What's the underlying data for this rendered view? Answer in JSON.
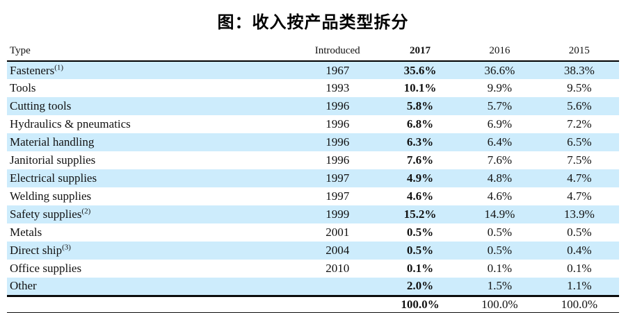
{
  "title": "图：收入按产品类型拆分",
  "table": {
    "headers": [
      "Type",
      "Introduced",
      "2017",
      "2016",
      "2015"
    ],
    "rows": [
      {
        "type": "Fasteners",
        "sup": "(1)",
        "introduced": "1967",
        "y2017": "35.6%",
        "y2016": "36.6%",
        "y2015": "38.3%"
      },
      {
        "type": "Tools",
        "sup": "",
        "introduced": "1993",
        "y2017": "10.1%",
        "y2016": "9.9%",
        "y2015": "9.5%"
      },
      {
        "type": "Cutting tools",
        "sup": "",
        "introduced": "1996",
        "y2017": "5.8%",
        "y2016": "5.7%",
        "y2015": "5.6%"
      },
      {
        "type": "Hydraulics & pneumatics",
        "sup": "",
        "introduced": "1996",
        "y2017": "6.8%",
        "y2016": "6.9%",
        "y2015": "7.2%"
      },
      {
        "type": "Material handling",
        "sup": "",
        "introduced": "1996",
        "y2017": "6.3%",
        "y2016": "6.4%",
        "y2015": "6.5%"
      },
      {
        "type": "Janitorial supplies",
        "sup": "",
        "introduced": "1996",
        "y2017": "7.6%",
        "y2016": "7.6%",
        "y2015": "7.5%"
      },
      {
        "type": "Electrical supplies",
        "sup": "",
        "introduced": "1997",
        "y2017": "4.9%",
        "y2016": "4.8%",
        "y2015": "4.7%"
      },
      {
        "type": "Welding supplies",
        "sup": "",
        "introduced": "1997",
        "y2017": "4.6%",
        "y2016": "4.6%",
        "y2015": "4.7%"
      },
      {
        "type": "Safety supplies",
        "sup": "(2)",
        "introduced": "1999",
        "y2017": "15.2%",
        "y2016": "14.9%",
        "y2015": "13.9%"
      },
      {
        "type": "Metals",
        "sup": "",
        "introduced": "2001",
        "y2017": "0.5%",
        "y2016": "0.5%",
        "y2015": "0.5%"
      },
      {
        "type": "Direct ship",
        "sup": "(3)",
        "introduced": "2004",
        "y2017": "0.5%",
        "y2016": "0.5%",
        "y2015": "0.4%"
      },
      {
        "type": "Office supplies",
        "sup": "",
        "introduced": "2010",
        "y2017": "0.1%",
        "y2016": "0.1%",
        "y2015": "0.1%"
      },
      {
        "type": "Other",
        "sup": "",
        "introduced": "",
        "y2017": "2.0%",
        "y2016": "1.5%",
        "y2015": "1.1%"
      }
    ],
    "total": {
      "type": "",
      "introduced": "",
      "y2017": "100.0%",
      "y2016": "100.0%",
      "y2015": "100.0%"
    }
  },
  "colors": {
    "row_highlight": "#cdecfc",
    "text": "#111111",
    "rule": "#000000"
  },
  "chart_data": {
    "type": "table",
    "title": "图：收入按产品类型拆分",
    "columns": [
      "Type",
      "Introduced",
      "2017",
      "2016",
      "2015"
    ],
    "rows": [
      [
        "Fasteners(1)",
        "1967",
        "35.6%",
        "36.6%",
        "38.3%"
      ],
      [
        "Tools",
        "1993",
        "10.1%",
        "9.9%",
        "9.5%"
      ],
      [
        "Cutting tools",
        "1996",
        "5.8%",
        "5.7%",
        "5.6%"
      ],
      [
        "Hydraulics & pneumatics",
        "1996",
        "6.8%",
        "6.9%",
        "7.2%"
      ],
      [
        "Material handling",
        "1996",
        "6.3%",
        "6.4%",
        "6.5%"
      ],
      [
        "Janitorial supplies",
        "1996",
        "7.6%",
        "7.6%",
        "7.5%"
      ],
      [
        "Electrical supplies",
        "1997",
        "4.9%",
        "4.8%",
        "4.7%"
      ],
      [
        "Welding supplies",
        "1997",
        "4.6%",
        "4.6%",
        "4.7%"
      ],
      [
        "Safety supplies(2)",
        "1999",
        "15.2%",
        "14.9%",
        "13.9%"
      ],
      [
        "Metals",
        "2001",
        "0.5%",
        "0.5%",
        "0.5%"
      ],
      [
        "Direct ship(3)",
        "2004",
        "0.5%",
        "0.5%",
        "0.4%"
      ],
      [
        "Office supplies",
        "2010",
        "0.1%",
        "0.1%",
        "0.1%"
      ],
      [
        "Other",
        "",
        "2.0%",
        "1.5%",
        "1.1%"
      ],
      [
        "",
        "",
        "100.0%",
        "100.0%",
        "100.0%"
      ]
    ]
  }
}
